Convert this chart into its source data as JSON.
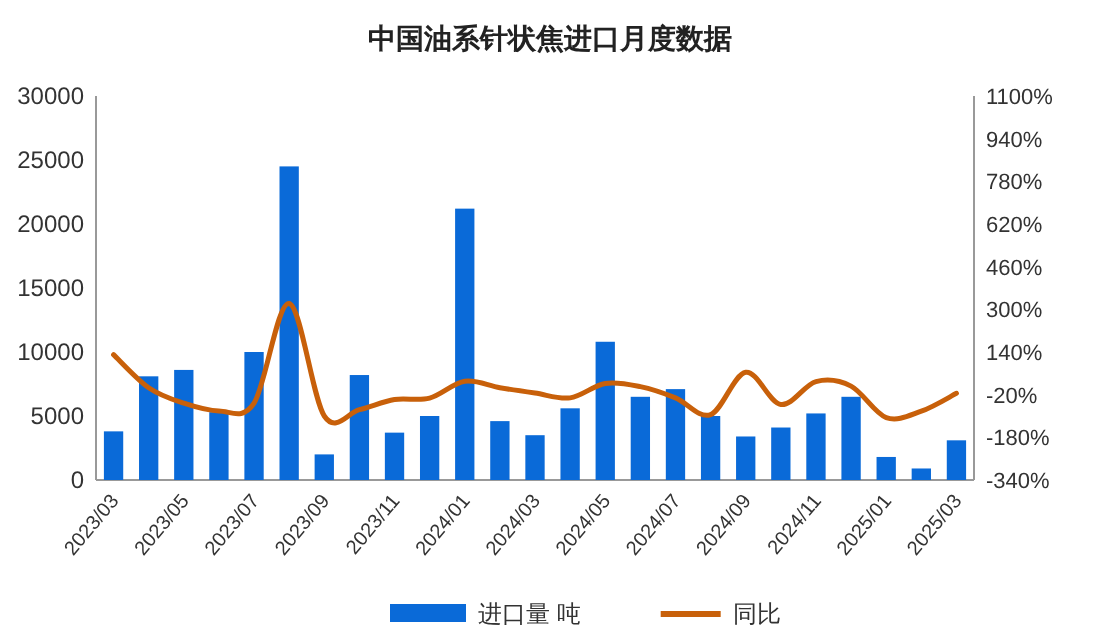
{
  "chart_data": {
    "type": "bar",
    "title": "中国油系针状焦进口月度数据",
    "categories": [
      "2023/03",
      null,
      "2023/05",
      null,
      "2023/07",
      null,
      "2023/09",
      null,
      "2023/11",
      null,
      "2024/01",
      null,
      "2024/03",
      null,
      "2024/05",
      null,
      "2024/07",
      null,
      "2024/09",
      null,
      "2024/11",
      null,
      "2025/01",
      null,
      "2025/03"
    ],
    "series": [
      {
        "name": "进口量 吨",
        "color": "#0a6ad8",
        "values": [
          3800,
          8100,
          8600,
          5300,
          10000,
          24500,
          2000,
          8200,
          3700,
          5000,
          21200,
          4600,
          3500,
          5600,
          10800,
          6500,
          7100,
          5000,
          3400,
          4100,
          5200,
          6500,
          1800,
          900,
          3100
        ]
      },
      {
        "name": "同比",
        "type": "line",
        "axis": "y2",
        "color": "#c8600a",
        "values": [
          130,
          6,
          -52,
          -81,
          -52,
          322,
          -100,
          -76,
          -38,
          -33,
          30,
          6,
          -14,
          -32,
          22,
          10,
          -32,
          -95,
          64,
          -57,
          29,
          12,
          -106,
          -82,
          -15
        ]
      }
    ],
    "ylim": [
      0,
      30000
    ],
    "yticks": [
      0,
      5000,
      10000,
      15000,
      20000,
      25000,
      30000
    ],
    "y2lim": [
      -340,
      1100
    ],
    "y2ticks": [
      {
        "value": -340,
        "label": "-340%"
      },
      {
        "value": -180,
        "label": "-180%"
      },
      {
        "value": -20,
        "label": "-20%"
      },
      {
        "value": 140,
        "label": "140%"
      },
      {
        "value": 300,
        "label": "300%"
      },
      {
        "value": 460,
        "label": "460%"
      },
      {
        "value": 620,
        "label": "620%"
      },
      {
        "value": 780,
        "label": "780%"
      },
      {
        "value": 940,
        "label": "940%"
      },
      {
        "value": 1100,
        "label": "1100%"
      }
    ],
    "legend": "bottom",
    "grid": false
  }
}
